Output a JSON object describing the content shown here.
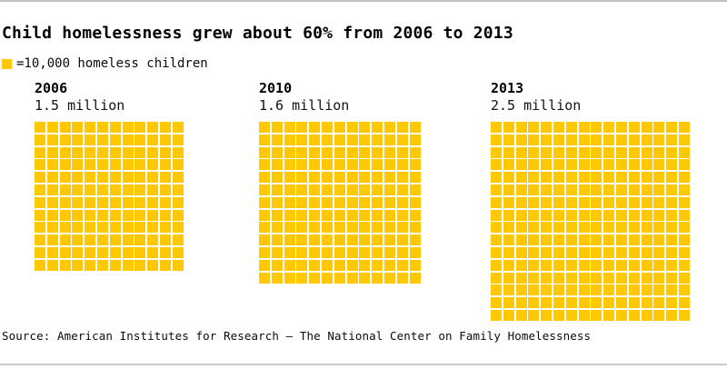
{
  "page": {
    "source": "Source: American Institutes for Research – The National Center on Family Homelessness"
  },
  "legend": {
    "label": "=10,000 homeless children",
    "swatch_color": "#FFC805"
  },
  "chart_data": {
    "type": "pictogram",
    "title": "Child homelessness grew about 60% from 2006 to 2013",
    "unit_label": "=10,000 homeless children",
    "unit_value": 10000,
    "square_color": "#FFC805",
    "categories": [
      "2006",
      "2010",
      "2013"
    ],
    "values": [
      1500000,
      1600000,
      2500000
    ],
    "value_labels": [
      "1.5 million",
      "1.6 million",
      "2.5 million"
    ],
    "groups": [
      {
        "year": "2006",
        "value": 1500000,
        "value_label": "1.5 million",
        "cols": 12,
        "rows": 12,
        "squares": 144
      },
      {
        "year": "2010",
        "value": 1600000,
        "value_label": "1.6 million",
        "cols": 13,
        "rows": 13,
        "squares": 169
      },
      {
        "year": "2013",
        "value": 2500000,
        "value_label": "2.5 million",
        "cols": 16,
        "rows": 16,
        "squares": 256
      }
    ],
    "legend_position": "top-left",
    "grid": false
  }
}
